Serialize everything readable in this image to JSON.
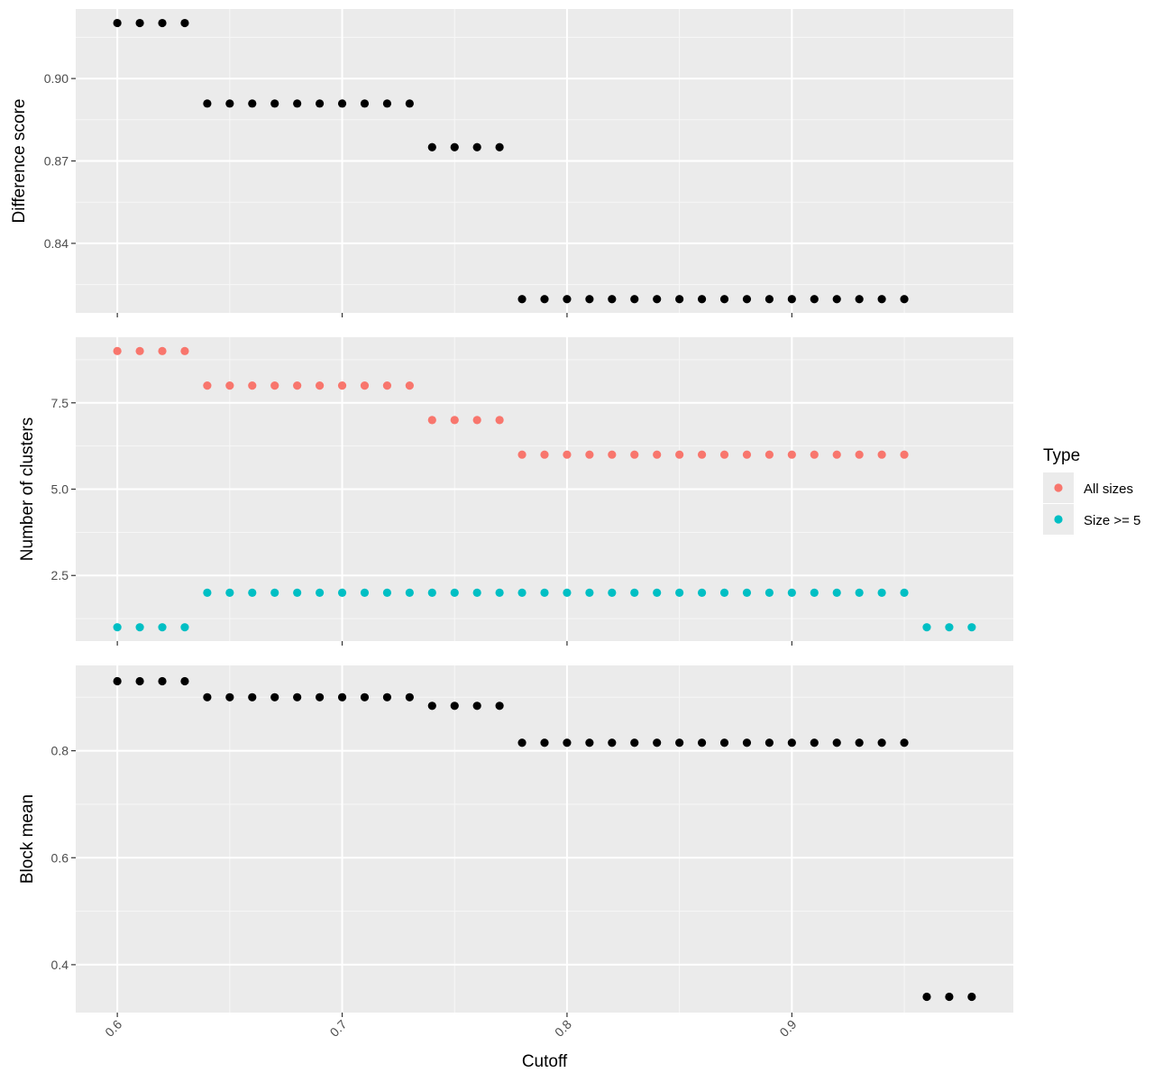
{
  "chart_data": {
    "type": "scatter",
    "xlabel": "Cutoff",
    "x_ticks": [
      "0.6",
      "0.7",
      "0.8",
      "0.9"
    ],
    "x_tick_values": [
      0.6,
      0.7,
      0.8,
      0.9
    ],
    "xlim": [
      0.5815,
      0.9985
    ],
    "legend": {
      "title": "Type",
      "position": "right",
      "entries": [
        {
          "label": "All sizes",
          "color": "#F8766D"
        },
        {
          "label": "Size >= 5",
          "color": "#00BFC4"
        }
      ]
    },
    "panels": [
      {
        "ylabel": "Difference score",
        "y_ticks": [
          "0.84",
          "0.87",
          "0.90"
        ],
        "y_tick_values": [
          0.84,
          0.87,
          0.9
        ],
        "ylim": [
          0.8147,
          0.9253
        ],
        "series": [
          {
            "color": "#000000",
            "x": [
              0.6,
              0.61,
              0.62,
              0.63,
              0.64,
              0.65,
              0.66,
              0.67,
              0.68,
              0.69,
              0.7,
              0.71,
              0.72,
              0.73,
              0.74,
              0.75,
              0.76,
              0.77,
              0.78,
              0.79,
              0.8,
              0.81,
              0.82,
              0.83,
              0.84,
              0.85,
              0.86,
              0.87,
              0.88,
              0.89,
              0.9,
              0.91,
              0.92,
              0.93,
              0.94,
              0.95
            ],
            "y": [
              0.9202,
              0.9202,
              0.9202,
              0.9202,
              0.8909,
              0.8909,
              0.8909,
              0.8909,
              0.8909,
              0.8909,
              0.8909,
              0.8909,
              0.8909,
              0.8909,
              0.875,
              0.875,
              0.875,
              0.875,
              0.8197,
              0.8197,
              0.8197,
              0.8197,
              0.8197,
              0.8197,
              0.8197,
              0.8197,
              0.8197,
              0.8197,
              0.8197,
              0.8197,
              0.8197,
              0.8197,
              0.8197,
              0.8197,
              0.8197,
              0.8197
            ]
          }
        ]
      },
      {
        "ylabel": "Number of clusters",
        "y_ticks": [
          "2.5",
          "5.0",
          "7.5"
        ],
        "y_tick_values": [
          2.5,
          5.0,
          7.5
        ],
        "ylim": [
          0.6,
          9.4
        ],
        "series": [
          {
            "name": "All sizes",
            "color": "#F8766D",
            "x": [
              0.6,
              0.61,
              0.62,
              0.63,
              0.64,
              0.65,
              0.66,
              0.67,
              0.68,
              0.69,
              0.7,
              0.71,
              0.72,
              0.73,
              0.74,
              0.75,
              0.76,
              0.77,
              0.78,
              0.79,
              0.8,
              0.81,
              0.82,
              0.83,
              0.84,
              0.85,
              0.86,
              0.87,
              0.88,
              0.89,
              0.9,
              0.91,
              0.92,
              0.93,
              0.94,
              0.95
            ],
            "y": [
              9,
              9,
              9,
              9,
              8,
              8,
              8,
              8,
              8,
              8,
              8,
              8,
              8,
              8,
              7,
              7,
              7,
              7,
              6,
              6,
              6,
              6,
              6,
              6,
              6,
              6,
              6,
              6,
              6,
              6,
              6,
              6,
              6,
              6,
              6,
              6
            ]
          },
          {
            "name": "Size >= 5",
            "color": "#00BFC4",
            "x": [
              0.6,
              0.61,
              0.62,
              0.63,
              0.64,
              0.65,
              0.66,
              0.67,
              0.68,
              0.69,
              0.7,
              0.71,
              0.72,
              0.73,
              0.74,
              0.75,
              0.76,
              0.77,
              0.78,
              0.79,
              0.8,
              0.81,
              0.82,
              0.83,
              0.84,
              0.85,
              0.86,
              0.87,
              0.88,
              0.89,
              0.9,
              0.91,
              0.92,
              0.93,
              0.94,
              0.95,
              0.96,
              0.97,
              0.98
            ],
            "y": [
              1,
              1,
              1,
              1,
              2,
              2,
              2,
              2,
              2,
              2,
              2,
              2,
              2,
              2,
              2,
              2,
              2,
              2,
              2,
              2,
              2,
              2,
              2,
              2,
              2,
              2,
              2,
              2,
              2,
              2,
              2,
              2,
              2,
              2,
              2,
              2,
              1,
              1,
              1
            ]
          }
        ]
      },
      {
        "ylabel": "Block mean",
        "y_ticks": [
          "0.4",
          "0.6",
          "0.8"
        ],
        "y_tick_values": [
          0.4,
          0.6,
          0.8
        ],
        "ylim": [
          0.3105,
          0.9595
        ],
        "series": [
          {
            "color": "#000000",
            "x": [
              0.6,
              0.61,
              0.62,
              0.63,
              0.64,
              0.65,
              0.66,
              0.67,
              0.68,
              0.69,
              0.7,
              0.71,
              0.72,
              0.73,
              0.74,
              0.75,
              0.76,
              0.77,
              0.78,
              0.79,
              0.8,
              0.81,
              0.82,
              0.83,
              0.84,
              0.85,
              0.86,
              0.87,
              0.88,
              0.89,
              0.9,
              0.91,
              0.92,
              0.93,
              0.94,
              0.95,
              0.96,
              0.97,
              0.98
            ],
            "y": [
              0.93,
              0.93,
              0.93,
              0.93,
              0.9,
              0.9,
              0.9,
              0.9,
              0.9,
              0.9,
              0.9,
              0.9,
              0.9,
              0.9,
              0.884,
              0.884,
              0.884,
              0.884,
              0.815,
              0.815,
              0.815,
              0.815,
              0.815,
              0.815,
              0.815,
              0.815,
              0.815,
              0.815,
              0.815,
              0.815,
              0.815,
              0.815,
              0.815,
              0.815,
              0.815,
              0.815,
              0.34,
              0.34,
              0.34
            ]
          }
        ]
      }
    ]
  }
}
